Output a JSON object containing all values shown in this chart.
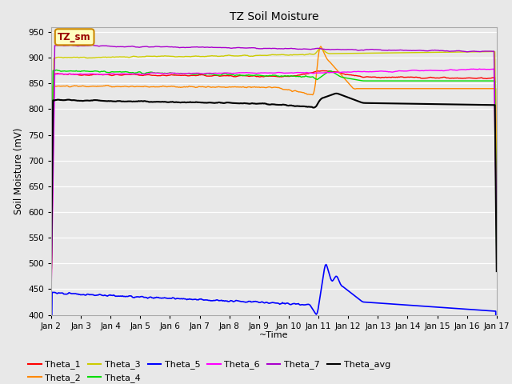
{
  "title": "TZ Soil Moisture",
  "ylabel": "Soil Moisture (mV)",
  "xlabel": "~Time",
  "ylim": [
    400,
    960
  ],
  "yticks": [
    400,
    450,
    500,
    550,
    600,
    650,
    700,
    750,
    800,
    850,
    900,
    950
  ],
  "xtick_labels": [
    "Jan 2",
    "Jan 3",
    "Jan 4",
    "Jan 5",
    "Jan 6",
    "Jan 7",
    "Jan 8",
    "Jan 9",
    "Jan 10",
    "Jan 11",
    "Jan 12",
    "Jan 13",
    "Jan 14",
    "Jan 15",
    "Jan 16",
    "Jan 17"
  ],
  "fig_bg": "#e8e8e8",
  "plot_bg": "#e8e8e8",
  "grid_color": "#ffffff",
  "legend_box_facecolor": "#ffffc0",
  "legend_box_edgecolor": "#cc8800",
  "annotation_text": "TZ_sm",
  "annotation_color": "#990000",
  "series_order": [
    "Theta_1",
    "Theta_2",
    "Theta_3",
    "Theta_4",
    "Theta_5",
    "Theta_6",
    "Theta_7",
    "Theta_avg"
  ],
  "series": {
    "Theta_1": {
      "color": "#ff0000",
      "linewidth": 1.0
    },
    "Theta_2": {
      "color": "#ff8800",
      "linewidth": 1.0
    },
    "Theta_3": {
      "color": "#cccc00",
      "linewidth": 1.0
    },
    "Theta_4": {
      "color": "#00dd00",
      "linewidth": 1.0
    },
    "Theta_5": {
      "color": "#0000ff",
      "linewidth": 1.2
    },
    "Theta_6": {
      "color": "#ff00ff",
      "linewidth": 1.0
    },
    "Theta_7": {
      "color": "#aa00cc",
      "linewidth": 1.0
    },
    "Theta_avg": {
      "color": "#000000",
      "linewidth": 1.5
    }
  }
}
